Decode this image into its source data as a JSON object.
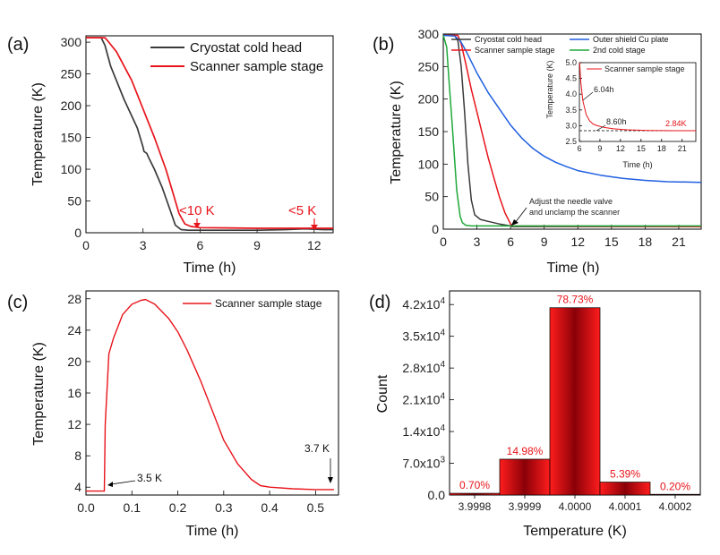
{
  "colors": {
    "black": "#3a3a3a",
    "red": "#e8141b",
    "blue": "#1f5fe0",
    "green": "#1fa83a",
    "bar_dark": "#7a0008",
    "bar_light": "#ff1a1a"
  },
  "chart_data": [
    {
      "panel": "(a)",
      "type": "line",
      "xlabel": "Time (h)",
      "ylabel": "Temperature (K)",
      "xlim": [
        0,
        13
      ],
      "ylim": [
        0,
        310
      ],
      "xticks": [
        "0",
        "3",
        "6",
        "9",
        "12"
      ],
      "yticks": [
        "0",
        "50",
        "100",
        "150",
        "200",
        "250",
        "300"
      ],
      "series": [
        {
          "name": "Cryostat cold head",
          "color": "black",
          "x": [
            0,
            0.8,
            1.0,
            1.3,
            2.0,
            2.7,
            3.0,
            3.05,
            3.2,
            3.3,
            3.6,
            4.0,
            4.4,
            4.7,
            5.0,
            5.4,
            6.0,
            9.0,
            10.5,
            11.5,
            12.5,
            13.0
          ],
          "y": [
            307,
            307,
            295,
            262,
            210,
            165,
            135,
            128,
            125,
            118,
            100,
            72,
            38,
            12,
            5,
            4,
            4,
            4,
            5,
            6,
            5,
            5
          ]
        },
        {
          "name": "Scanner sample stage",
          "color": "red",
          "x": [
            0,
            1.0,
            1.2,
            1.6,
            2.4,
            3.0,
            3.6,
            4.2,
            4.6,
            4.9,
            5.2,
            5.5,
            6.0,
            9.0,
            12.0,
            13.0
          ],
          "y": [
            307,
            307,
            300,
            285,
            240,
            195,
            150,
            100,
            60,
            30,
            14,
            10,
            8,
            7,
            7,
            7
          ]
        }
      ],
      "annotations": [
        {
          "text": "<10 K",
          "x": 5.6,
          "y": 10
        },
        {
          "text": "<5 K",
          "x": 12.1,
          "y": 5
        }
      ]
    },
    {
      "panel": "(b)",
      "type": "line",
      "xlabel": "Time (h)",
      "ylabel": "Temperature (K)",
      "xlim": [
        0,
        23
      ],
      "ylim": [
        0,
        300
      ],
      "xticks": [
        "0",
        "3",
        "6",
        "9",
        "12",
        "15",
        "18",
        "21"
      ],
      "yticks": [
        "0",
        "50",
        "100",
        "150",
        "200",
        "250",
        "300"
      ],
      "series": [
        {
          "name": "Cryostat cold head",
          "color": "black",
          "x": [
            0,
            1.0,
            1.3,
            1.6,
            1.9,
            2.2,
            2.5,
            2.8,
            3.3,
            4.0,
            5.0,
            6.0,
            6.1,
            7.0,
            23
          ],
          "y": [
            298,
            298,
            290,
            250,
            180,
            100,
            45,
            22,
            15,
            12,
            8,
            5,
            4,
            4,
            4
          ]
        },
        {
          "name": "Scanner sample stage",
          "color": "red",
          "x": [
            0,
            1.3,
            1.6,
            2.0,
            2.5,
            3.0,
            3.5,
            4.0,
            4.5,
            5.0,
            5.5,
            6.0,
            6.2,
            23
          ],
          "y": [
            298,
            298,
            285,
            255,
            215,
            180,
            145,
            110,
            80,
            50,
            25,
            8,
            5,
            4
          ]
        },
        {
          "name": "Outer shield Cu plate",
          "color": "blue",
          "x": [
            0,
            1.0,
            1.5,
            2.0,
            3.0,
            4.0,
            5.0,
            6.0,
            7.0,
            8.0,
            9.0,
            10.0,
            11.0,
            12.0,
            14.0,
            16.0,
            18.0,
            20.0,
            23.0
          ],
          "y": [
            298,
            297,
            290,
            275,
            240,
            210,
            185,
            160,
            140,
            124,
            112,
            103,
            96,
            90,
            83,
            78,
            75,
            73,
            72
          ]
        },
        {
          "name": "2nd cold stage",
          "color": "green",
          "x": [
            0,
            0.3,
            0.5,
            0.8,
            1.0,
            1.2,
            1.5,
            1.7,
            2.0,
            2.5,
            23
          ],
          "y": [
            298,
            280,
            230,
            160,
            110,
            60,
            20,
            10,
            6,
            5,
            5
          ]
        }
      ],
      "annotations": [
        {
          "text": "Adjust the needle valve",
          "x": 6,
          "y": 5
        },
        {
          "text": "and unclamp the scanner",
          "x": 6,
          "y": 5
        }
      ],
      "inset": {
        "type": "line",
        "xlabel": "Time (h)",
        "ylabel": "Temperature (K)",
        "xlim": [
          6,
          23
        ],
        "ylim": [
          2.5,
          5.0
        ],
        "xticks": [
          "6",
          "9",
          "12",
          "15",
          "18",
          "21"
        ],
        "yticks": [
          "2.5",
          "3.0",
          "3.5",
          "4.0",
          "4.5",
          "5.0"
        ],
        "reference_line": 2.84,
        "series": [
          {
            "name": "Scanner sample stage",
            "color": "red",
            "x": [
              6.04,
              6.2,
              6.5,
              7.0,
              7.5,
              8.0,
              8.6,
              9.5,
              11.0,
              13.0,
              16.0,
              20.0,
              23.0
            ],
            "y": [
              5.0,
              4.4,
              3.8,
              3.35,
              3.15,
              3.05,
              3.0,
              2.95,
              2.9,
              2.87,
              2.85,
              2.84,
              2.84
            ]
          }
        ],
        "annotations": [
          {
            "text": "6.04h",
            "x": 6.04,
            "y": 4.04
          },
          {
            "text": "8.60h",
            "x": 8.6,
            "y": 3.0
          },
          {
            "text": "2.84K",
            "x": 20,
            "y": 2.84
          }
        ]
      }
    },
    {
      "panel": "(c)",
      "type": "line",
      "xlabel": "Time (h)",
      "ylabel": "Temperature (K)",
      "xlim": [
        0,
        0.55
      ],
      "ylim": [
        3,
        29
      ],
      "xticks": [
        "0.0",
        "0.1",
        "0.2",
        "0.3",
        "0.4",
        "0.5"
      ],
      "yticks": [
        "4",
        "8",
        "12",
        "16",
        "20",
        "24",
        "28"
      ],
      "series": [
        {
          "name": "Scanner sample stage",
          "color": "red",
          "x": [
            0,
            0.04,
            0.042,
            0.05,
            0.06,
            0.08,
            0.1,
            0.12,
            0.13,
            0.15,
            0.18,
            0.2,
            0.22,
            0.25,
            0.28,
            0.3,
            0.33,
            0.36,
            0.38,
            0.4,
            0.45,
            0.5,
            0.54
          ],
          "y": [
            3.5,
            3.5,
            12,
            21,
            23,
            26,
            27.3,
            27.8,
            27.9,
            27.3,
            25.5,
            23.8,
            21.5,
            17.5,
            13,
            10,
            7,
            5,
            4.2,
            4.0,
            3.8,
            3.7,
            3.7
          ]
        }
      ],
      "annotations": [
        {
          "text": "3.5 K",
          "x": 0.04,
          "y": 3.5
        },
        {
          "text": "3.7 K",
          "x": 0.535,
          "y": 3.7
        }
      ]
    },
    {
      "panel": "(d)",
      "type": "bar",
      "xlabel": "Temperature (K)",
      "ylabel": "Count",
      "ylim": [
        0,
        45000
      ],
      "categories": [
        "3.9998",
        "3.9999",
        "4.0000",
        "4.0001",
        "4.0002"
      ],
      "values": [
        380,
        7900,
        41300,
        2850,
        110
      ],
      "labels": [
        "0.70%",
        "14.98%",
        "78.73%",
        "5.39%",
        "0.20%"
      ],
      "ytick_values": [
        0,
        7000,
        14000,
        21000,
        28000,
        35000,
        42000
      ],
      "ytick_mantissas": [
        "0.0",
        "7.0x10",
        "1.4x10",
        "2.1x10",
        "2.8x10",
        "3.5x10",
        "4.2x10"
      ],
      "ytick_exponents": [
        "",
        "3",
        "4",
        "4",
        "4",
        "4",
        "4"
      ]
    }
  ]
}
